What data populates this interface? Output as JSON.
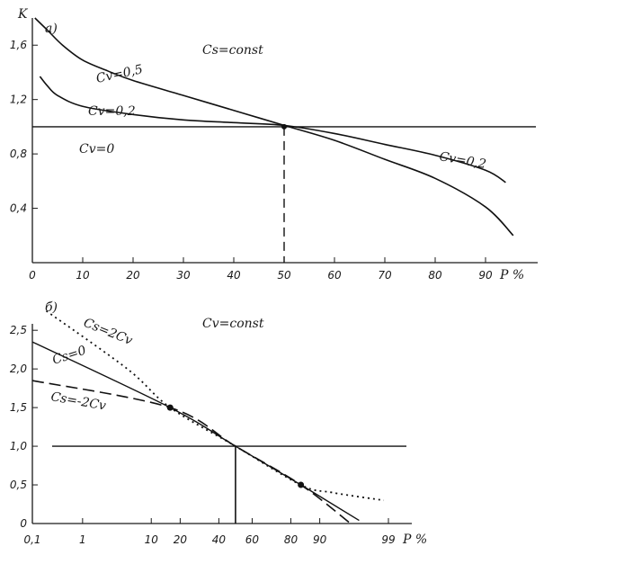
{
  "chart_data": [
    {
      "type": "line",
      "panel_label": "a)",
      "ylabel": "K",
      "xlabel": "P %",
      "annotation": "Cs=const",
      "xlim": [
        0,
        100
      ],
      "ylim": [
        0,
        1.8
      ],
      "x_ticks": [
        "0",
        "10",
        "20",
        "30",
        "40",
        "50",
        "60",
        "70",
        "80",
        "90"
      ],
      "y_ticks": [
        "0,4",
        "0,8",
        "1,2",
        "1,6"
      ],
      "y_tick_values": [
        0.4,
        0.8,
        1.2,
        1.6
      ],
      "series": [
        {
          "name": "Cv=0,5",
          "x": [
            0.5,
            3,
            6,
            10,
            15,
            20,
            30,
            40,
            50,
            60,
            70,
            80,
            90,
            95.5
          ],
          "y": [
            1.8,
            1.71,
            1.6,
            1.49,
            1.41,
            1.34,
            1.23,
            1.12,
            1.01,
            0.9,
            0.76,
            0.62,
            0.41,
            0.2
          ]
        },
        {
          "name": "Cv=0,2",
          "label_right": "Cv=0,2",
          "x": [
            1.5,
            3,
            5,
            10,
            20,
            30,
            40,
            50,
            60,
            70,
            80,
            90,
            94
          ],
          "y": [
            1.37,
            1.3,
            1.23,
            1.15,
            1.09,
            1.05,
            1.03,
            1.01,
            0.95,
            0.87,
            0.79,
            0.68,
            0.59
          ]
        },
        {
          "name": "Cv=0",
          "x": [
            0,
            100
          ],
          "y": [
            1.0,
            1.0
          ]
        }
      ],
      "marker": {
        "x": 50,
        "y": 1.0
      }
    },
    {
      "type": "line",
      "panel_label": "б)",
      "xlabel": "P %",
      "annotation": "Cv=const",
      "x_ticks": [
        "0,1",
        "1",
        "10",
        "20",
        "40",
        "60",
        "80",
        "90",
        "99"
      ],
      "y_ticks": [
        "0",
        "0,5",
        "1,0",
        "1,5",
        "2,0",
        "2,5"
      ],
      "y_tick_values": [
        0,
        0.5,
        1.0,
        1.5,
        2.0,
        2.5
      ],
      "ylim": [
        0,
        2.7
      ],
      "series": [
        {
          "name": "Cs=0",
          "x": [
            0.1,
            16,
            50,
            84,
            97
          ],
          "y": [
            2.35,
            1.5,
            1.0,
            0.5,
            0.04
          ]
        },
        {
          "name": "Cs=-2Cv",
          "x": [
            0.1,
            16,
            50,
            84,
            96
          ],
          "y": [
            1.85,
            1.5,
            1.0,
            0.5,
            0.0
          ]
        },
        {
          "name": "Cs=2Cv",
          "x": [
            0.2,
            5,
            16,
            50,
            84,
            93,
            98.8
          ],
          "y": [
            2.75,
            2.0,
            1.5,
            1.0,
            0.5,
            0.4,
            0.3
          ]
        }
      ],
      "markers": [
        {
          "x": 16,
          "y": 1.5
        },
        {
          "x": 84,
          "y": 0.5
        }
      ],
      "reference_x": 50
    }
  ]
}
